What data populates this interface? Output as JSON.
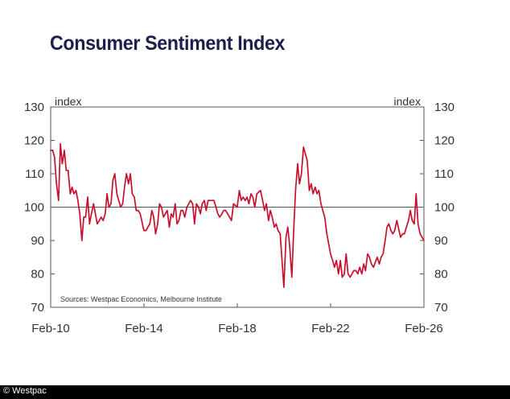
{
  "credit": "© Westpac",
  "chart_data": {
    "type": "line",
    "title": "Consumer Sentiment Index",
    "ylabel_left": "index",
    "ylabel_right": "index",
    "xlabel": "",
    "ylim": [
      70,
      130
    ],
    "yticks": [
      130,
      120,
      110,
      100,
      90,
      80,
      70
    ],
    "xticks": [
      "Feb-10",
      "Feb-14",
      "Feb-18",
      "Feb-22",
      "Feb-26"
    ],
    "xrange": [
      2010.083,
      2026.083
    ],
    "xtick_positions": [
      2010.083,
      2014.083,
      2018.083,
      2022.083,
      2026.083
    ],
    "reference_line": 100,
    "source": "Sources: Westpac Economics, Melbourne Institute",
    "line_color": "#c8102e",
    "series": [
      {
        "name": "Consumer Sentiment Index",
        "x": [
          2010.08,
          2010.17,
          2010.25,
          2010.33,
          2010.42,
          2010.5,
          2010.58,
          2010.67,
          2010.75,
          2010.83,
          2010.92,
          2011.0,
          2011.08,
          2011.17,
          2011.25,
          2011.33,
          2011.42,
          2011.5,
          2011.58,
          2011.67,
          2011.75,
          2011.83,
          2011.92,
          2012.08,
          2012.17,
          2012.25,
          2012.33,
          2012.42,
          2012.5,
          2012.58,
          2012.67,
          2012.75,
          2012.83,
          2012.92,
          2013.08,
          2013.17,
          2013.25,
          2013.33,
          2013.42,
          2013.5,
          2013.58,
          2013.67,
          2013.75,
          2013.83,
          2013.92,
          2014.08,
          2014.17,
          2014.25,
          2014.33,
          2014.42,
          2014.5,
          2014.58,
          2014.67,
          2014.75,
          2014.83,
          2014.92,
          2015.08,
          2015.17,
          2015.25,
          2015.33,
          2015.42,
          2015.5,
          2015.58,
          2015.67,
          2015.75,
          2015.83,
          2015.92,
          2016.08,
          2016.17,
          2016.25,
          2016.33,
          2016.42,
          2016.5,
          2016.58,
          2016.67,
          2016.75,
          2016.83,
          2016.92,
          2017.08,
          2017.17,
          2017.25,
          2017.33,
          2017.42,
          2017.5,
          2017.58,
          2017.67,
          2017.75,
          2017.83,
          2017.92,
          2018.08,
          2018.17,
          2018.25,
          2018.33,
          2018.42,
          2018.5,
          2018.58,
          2018.67,
          2018.75,
          2018.83,
          2018.92,
          2019.08,
          2019.17,
          2019.25,
          2019.33,
          2019.42,
          2019.5,
          2019.58,
          2019.67,
          2019.75,
          2019.83,
          2019.92,
          2020.08,
          2020.17,
          2020.25,
          2020.33,
          2020.42,
          2020.5,
          2020.58,
          2020.67,
          2020.75,
          2020.83,
          2020.92,
          2021.08,
          2021.17,
          2021.25,
          2021.33,
          2021.42,
          2021.5,
          2021.58,
          2021.67,
          2021.75,
          2021.83,
          2021.92,
          2022.08,
          2022.17,
          2022.25,
          2022.33,
          2022.42,
          2022.5,
          2022.58,
          2022.67,
          2022.75,
          2022.83,
          2022.92,
          2023.08,
          2023.17,
          2023.25,
          2023.33,
          2023.42,
          2023.5,
          2023.58,
          2023.67,
          2023.75,
          2023.83,
          2023.92,
          2024.08,
          2024.17,
          2024.25,
          2024.33,
          2024.42,
          2024.5,
          2024.58,
          2024.67,
          2024.75,
          2024.83,
          2024.92,
          2025.08,
          2025.17,
          2025.25,
          2025.33,
          2025.42,
          2025.5,
          2025.58,
          2025.67,
          2025.75,
          2025.83,
          2025.92,
          2026.08
        ],
        "values": [
          117,
          117,
          115,
          107,
          102,
          119,
          113,
          117,
          111,
          111,
          104,
          106,
          104,
          105,
          102,
          98,
          90,
          97,
          97,
          103,
          95,
          98,
          101,
          95,
          96,
          97,
          96,
          98,
          104,
          100,
          101,
          108,
          110,
          104,
          100,
          101,
          106,
          110,
          107,
          110,
          104,
          103,
          99,
          99,
          98,
          93,
          93,
          94,
          95,
          99,
          97,
          92,
          95,
          101,
          100,
          97,
          99,
          94,
          98,
          97,
          101,
          95,
          96,
          99,
          99,
          97,
          100,
          102,
          101,
          95,
          101,
          100,
          98,
          101,
          102,
          99,
          102,
          102,
          102,
          100,
          98,
          97,
          98,
          99,
          99,
          98,
          97,
          96,
          101,
          100,
          105,
          102,
          103,
          102,
          103,
          101,
          104,
          103,
          100,
          104,
          105,
          102,
          99,
          101,
          96,
          99,
          97,
          94,
          95,
          93,
          92,
          76,
          91,
          94,
          88,
          79,
          93,
          105,
          113,
          107,
          110,
          118,
          114,
          105,
          107,
          104,
          106,
          104,
          105,
          101,
          99,
          97,
          92,
          86,
          84,
          82,
          84,
          80,
          84,
          79,
          80,
          86,
          80,
          79,
          81,
          81,
          80,
          82,
          80,
          83,
          81,
          86,
          85,
          83,
          82,
          85,
          83,
          85,
          86,
          90,
          94,
          95,
          93,
          92,
          93,
          96,
          91,
          92,
          92,
          94,
          96,
          99,
          96,
          95,
          104,
          95,
          92,
          90
        ]
      }
    ]
  }
}
